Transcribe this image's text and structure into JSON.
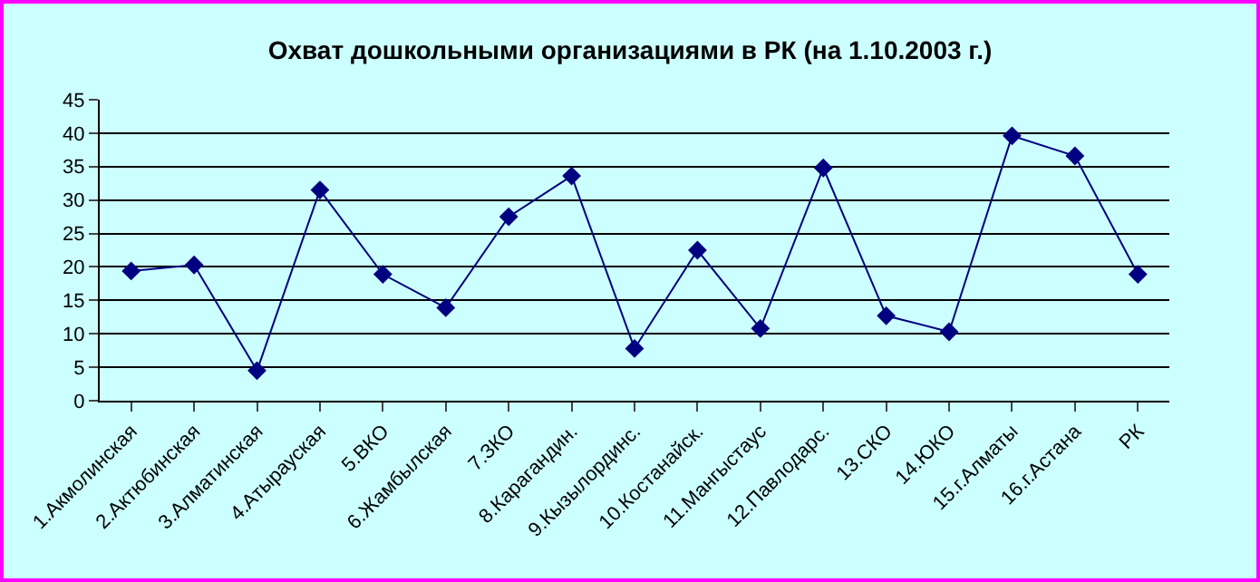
{
  "chart_data": {
    "type": "line",
    "title": "Охват дошкольными организациями в РК (на 1.10.2003 г.)",
    "categories": [
      "1.Акмолинская",
      "2.Актюбинская",
      "3.Алматинская",
      "4.Атырауская",
      "5.ВКО",
      "6.Жамбылская",
      "7.ЗКО",
      "8.Карагандин.",
      "9.Кызылординс.",
      "10.Костанайск.",
      "11.Мангыстаус",
      "12.Павлодарс.",
      "13.СКО",
      "14.ЮКО",
      "15.г.Алматы",
      "16.г.Астана",
      "РК"
    ],
    "series": [
      {
        "color": "#000080",
        "values": [
          19.4,
          20.3,
          4.5,
          31.5,
          18.9,
          13.9,
          27.5,
          33.6,
          7.8,
          22.5,
          10.8,
          34.8,
          12.7,
          10.3,
          39.6,
          36.6,
          18.9
        ]
      }
    ],
    "ylim": [
      0,
      45
    ],
    "yticks": [
      0,
      5,
      10,
      15,
      20,
      25,
      30,
      35,
      40,
      45
    ],
    "grid": "y",
    "legend": false,
    "marker": "diamond",
    "line_style": "solid"
  }
}
